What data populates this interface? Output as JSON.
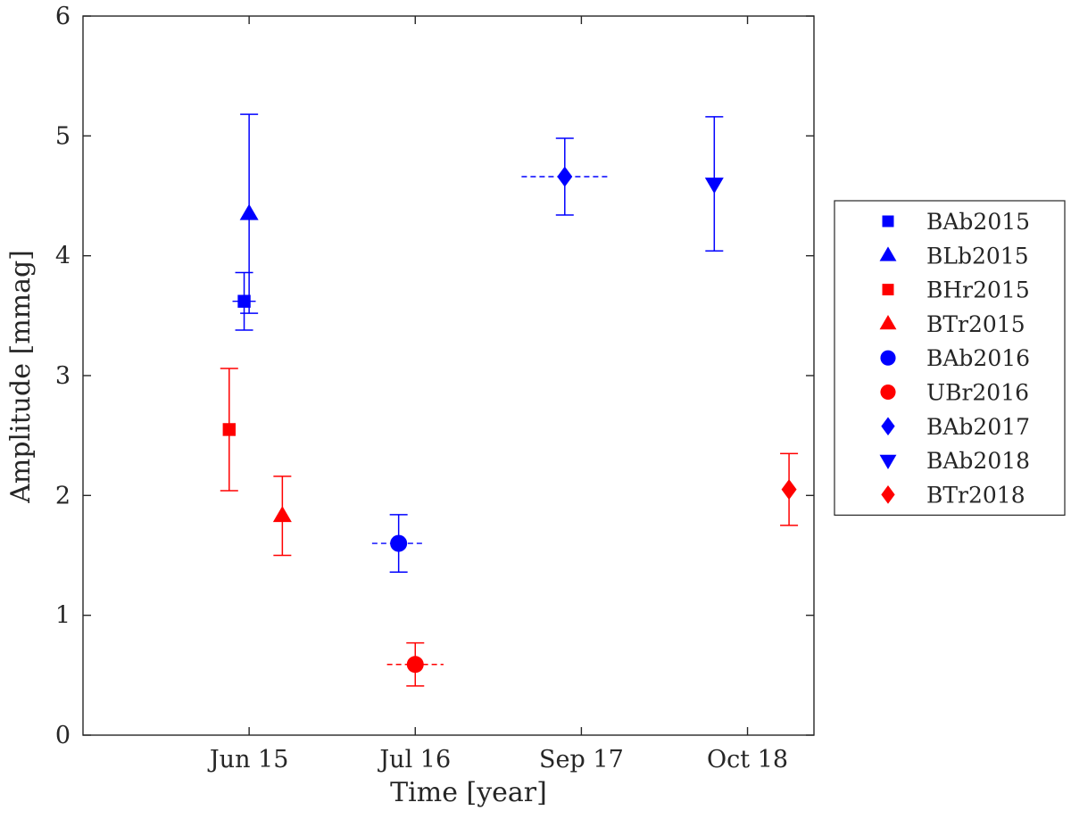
{
  "chart_data": {
    "type": "scatter",
    "xlabel": "Time [year]",
    "ylabel": "Amplitude [mmag]",
    "ylim": [
      0,
      6
    ],
    "xlim": [
      0,
      4.4
    ],
    "y_ticks": [
      "0",
      "1",
      "2",
      "3",
      "4",
      "5",
      "6"
    ],
    "x_ticks": [
      {
        "value": 1.0,
        "label": "Jun 15"
      },
      {
        "value": 2.0,
        "label": "Jul 16"
      },
      {
        "value": 3.0,
        "label": "Sep 17"
      },
      {
        "value": 4.0,
        "label": "Oct 18"
      }
    ],
    "legend_position": "outside-right",
    "series": [
      {
        "name": "BAb2015",
        "color": "#0000ff",
        "marker": "square",
        "x": 0.97,
        "y": 3.62,
        "y_err_low": 0.24,
        "y_err_high": 0.24,
        "x_err_low": 0.07,
        "x_err_high": 0.07
      },
      {
        "name": "BLb2015",
        "color": "#0000ff",
        "marker": "triangle-up",
        "x": 1.0,
        "y": 4.35,
        "y_err_low": 0.83,
        "y_err_high": 0.83,
        "x_err_low": 0,
        "x_err_high": 0
      },
      {
        "name": "BHr2015",
        "color": "#ff0000",
        "marker": "square",
        "x": 0.88,
        "y": 2.55,
        "y_err_low": 0.51,
        "y_err_high": 0.51,
        "x_err_low": 0,
        "x_err_high": 0
      },
      {
        "name": "BTr2015",
        "color": "#ff0000",
        "marker": "triangle-up",
        "x": 1.2,
        "y": 1.83,
        "y_err_low": 0.33,
        "y_err_high": 0.33,
        "x_err_low": 0,
        "x_err_high": 0
      },
      {
        "name": "BAb2016",
        "color": "#0000ff",
        "marker": "circle",
        "x": 1.9,
        "y": 1.6,
        "y_err_low": 0.24,
        "y_err_high": 0.24,
        "x_err_low": 0.16,
        "x_err_high": 0.16
      },
      {
        "name": "UBr2016",
        "color": "#ff0000",
        "marker": "circle",
        "x": 2.0,
        "y": 0.59,
        "y_err_low": 0.18,
        "y_err_high": 0.18,
        "x_err_low": 0.17,
        "x_err_high": 0.17
      },
      {
        "name": "BAb2017",
        "color": "#0000ff",
        "marker": "diamond",
        "x": 2.9,
        "y": 4.66,
        "y_err_low": 0.32,
        "y_err_high": 0.32,
        "x_err_low": 0.26,
        "x_err_high": 0.26
      },
      {
        "name": "BAb2018",
        "color": "#0000ff",
        "marker": "triangle-down",
        "x": 3.8,
        "y": 4.6,
        "y_err_low": 0.56,
        "y_err_high": 0.56,
        "x_err_low": 0,
        "x_err_high": 0
      },
      {
        "name": "BTr2018",
        "color": "#ff0000",
        "marker": "diamond",
        "x": 4.25,
        "y": 2.05,
        "y_err_low": 0.3,
        "y_err_high": 0.3,
        "x_err_low": 0,
        "x_err_high": 0
      }
    ]
  }
}
